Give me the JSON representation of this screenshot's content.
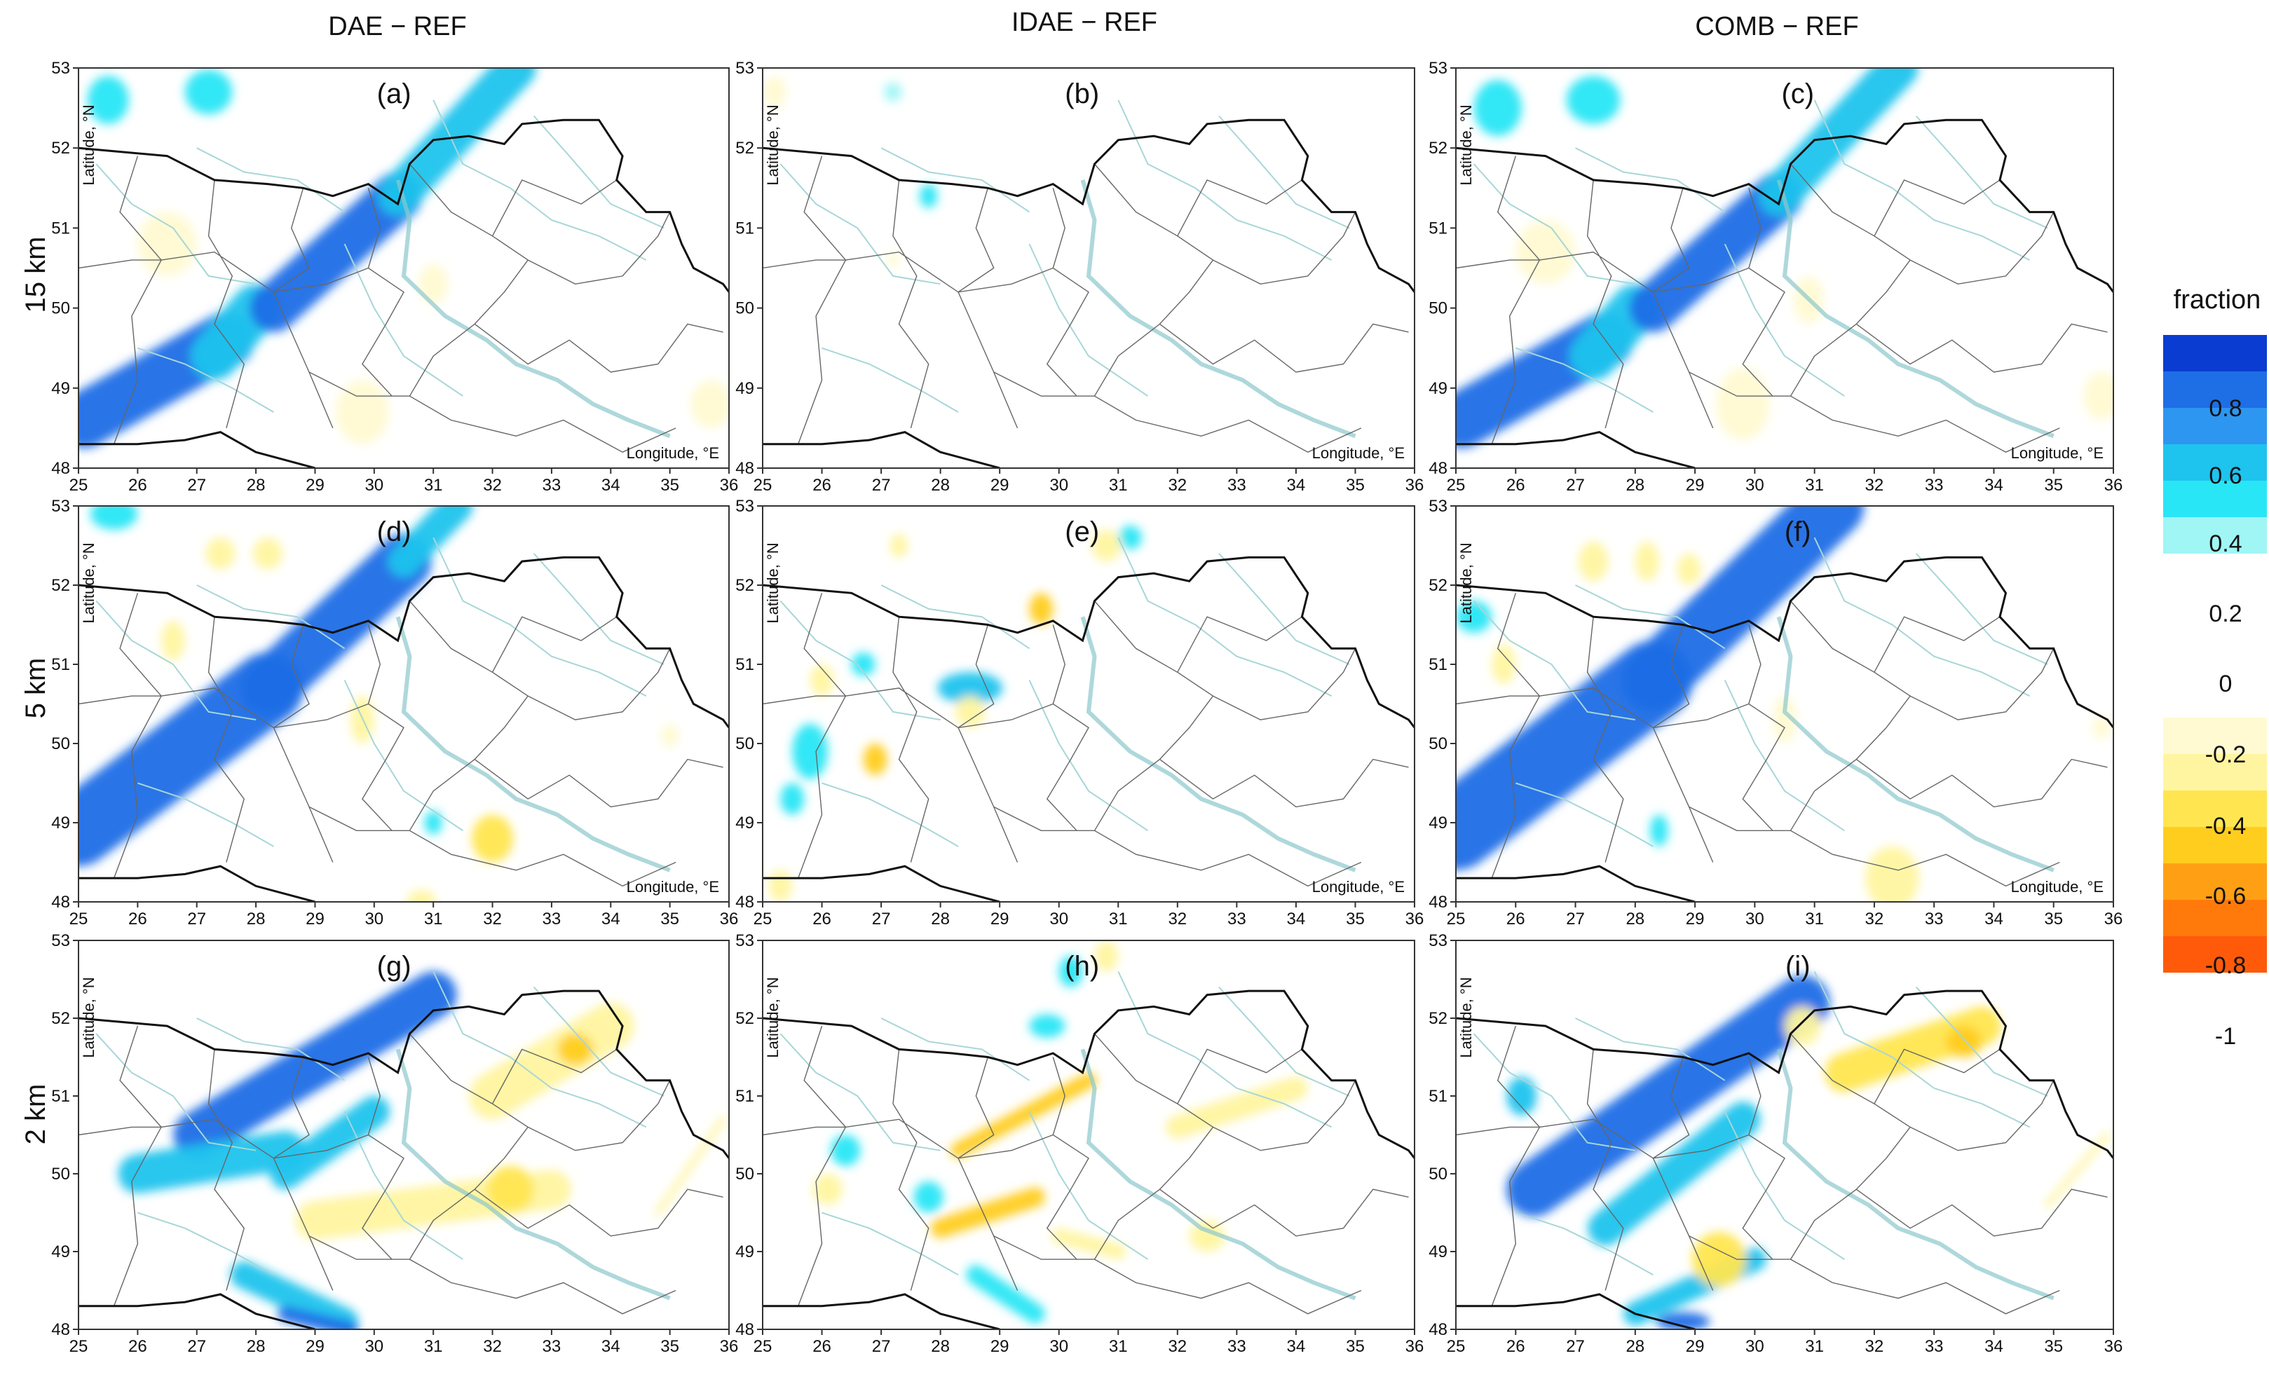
{
  "chart_data": {
    "type": "heatmap",
    "columns": [
      "DAE − REF",
      "IDAE − REF",
      "COMB − REF"
    ],
    "rows": [
      "15 km",
      "5 km",
      "2 km"
    ],
    "x": {
      "label": "Longitude, °E",
      "range": [
        25,
        36
      ],
      "ticks": [
        "25",
        "26",
        "27",
        "28",
        "29",
        "30",
        "31",
        "32",
        "33",
        "34",
        "35",
        "36"
      ]
    },
    "y": {
      "label": "Latitude, °N",
      "range": [
        48,
        53
      ],
      "ticks": [
        "48",
        "49",
        "50",
        "51",
        "52",
        "53"
      ]
    },
    "colorbar": {
      "title": "fraction",
      "range": [
        -1,
        1
      ],
      "labels": [
        "0.8",
        "0.6",
        "0.4",
        "0.2",
        "0",
        "-0.2",
        "-0.4",
        "-0.6",
        "-0.8",
        "-1"
      ],
      "colors_positive": [
        "#0a3cd2",
        "#1e6ee6",
        "#2d96f0",
        "#1ec3ee",
        "#28e6f5",
        "#a0f5f5"
      ],
      "colors_negative": [
        "#fffad2",
        "#fff5a0",
        "#ffe650",
        "#ffcd1e",
        "#ffa014",
        "#ff7a0a",
        "#ff5a0a"
      ]
    },
    "panels": [
      {
        "label": "(a)",
        "row": "15 km",
        "column": "DAE − REF",
        "x_label": "Longitude, °E",
        "y_label": "Latitude, °N",
        "features": [
          {
            "lon1": 25.1,
            "lat1": 48.6,
            "lon2": 27.5,
            "lat2": 49.6,
            "width": 0.7,
            "value": 0.9
          },
          {
            "lon1": 27.3,
            "lat1": 49.4,
            "lon2": 28.0,
            "lat2": 50.0,
            "width": 0.6,
            "value": 0.6
          },
          {
            "lon1": 28.3,
            "lat1": 50.0,
            "lon2": 30.4,
            "lat2": 51.4,
            "width": 0.6,
            "value": 0.9
          },
          {
            "lon1": 30.4,
            "lat1": 51.4,
            "lon2": 32.4,
            "lat2": 53.0,
            "width": 0.5,
            "value": 0.5
          },
          {
            "lon": 25.5,
            "lat": 52.6,
            "rx": 0.35,
            "ry": 0.3,
            "value": 0.4
          },
          {
            "lon": 27.2,
            "lat": 52.7,
            "rx": 0.4,
            "ry": 0.28,
            "value": 0.4
          },
          {
            "lon": 26.5,
            "lat": 50.8,
            "rx": 0.5,
            "ry": 0.4,
            "value": -0.15
          },
          {
            "lon": 29.8,
            "lat": 48.7,
            "rx": 0.45,
            "ry": 0.4,
            "value": -0.15
          },
          {
            "lon": 31.0,
            "lat": 50.3,
            "rx": 0.25,
            "ry": 0.25,
            "value": -0.1
          },
          {
            "lon": 35.7,
            "lat": 48.8,
            "rx": 0.35,
            "ry": 0.3,
            "value": -0.1
          }
        ]
      },
      {
        "label": "(b)",
        "row": "15 km",
        "column": "IDAE − REF",
        "x_label": "Longitude, °E",
        "y_label": "Latitude, °N",
        "features": [
          {
            "lon": 27.2,
            "lat": 52.7,
            "rx": 0.15,
            "ry": 0.12,
            "value": 0.2
          },
          {
            "lon": 27.8,
            "lat": 51.4,
            "rx": 0.15,
            "ry": 0.15,
            "value": 0.3
          },
          {
            "lon": 25.2,
            "lat": 52.7,
            "rx": 0.2,
            "ry": 0.2,
            "value": -0.1
          },
          {
            "lon": 27.2,
            "lat": 50.6,
            "rx": 0.1,
            "ry": 0.1,
            "value": -0.1
          }
        ]
      },
      {
        "label": "(c)",
        "row": "15 km",
        "column": "COMB − REF",
        "x_label": "Longitude, °E",
        "y_label": "Latitude, °N",
        "features": [
          {
            "lon1": 25.1,
            "lat1": 48.6,
            "lon2": 27.5,
            "lat2": 49.6,
            "width": 0.7,
            "value": 0.9
          },
          {
            "lon1": 27.3,
            "lat1": 49.4,
            "lon2": 28.0,
            "lat2": 50.0,
            "width": 0.6,
            "value": 0.6
          },
          {
            "lon1": 28.3,
            "lat1": 50.0,
            "lon2": 30.4,
            "lat2": 51.4,
            "width": 0.6,
            "value": 0.9
          },
          {
            "lon1": 30.4,
            "lat1": 51.4,
            "lon2": 32.4,
            "lat2": 53.0,
            "width": 0.5,
            "value": 0.5
          },
          {
            "lon": 25.7,
            "lat": 52.5,
            "rx": 0.4,
            "ry": 0.35,
            "value": 0.4
          },
          {
            "lon": 27.3,
            "lat": 52.6,
            "rx": 0.45,
            "ry": 0.3,
            "value": 0.4
          },
          {
            "lon": 26.5,
            "lat": 50.7,
            "rx": 0.5,
            "ry": 0.4,
            "value": -0.15
          },
          {
            "lon": 29.8,
            "lat": 48.8,
            "rx": 0.45,
            "ry": 0.45,
            "value": -0.15
          },
          {
            "lon": 30.9,
            "lat": 50.1,
            "rx": 0.25,
            "ry": 0.3,
            "value": -0.1
          },
          {
            "lon": 35.8,
            "lat": 48.9,
            "rx": 0.3,
            "ry": 0.3,
            "value": -0.1
          }
        ]
      },
      {
        "label": "(d)",
        "row": "5 km",
        "column": "DAE − REF",
        "x_label": "Longitude, °E",
        "y_label": "Latitude, °N",
        "features": [
          {
            "lon1": 25.0,
            "lat1": 48.9,
            "lon2": 28.2,
            "lat2": 50.7,
            "width": 0.9,
            "value": 0.9
          },
          {
            "lon1": 28.2,
            "lat1": 50.7,
            "lon2": 30.5,
            "lat2": 52.3,
            "width": 0.7,
            "value": 0.9
          },
          {
            "lon1": 30.5,
            "lat1": 52.3,
            "lon2": 31.4,
            "lat2": 53.0,
            "width": 0.4,
            "value": 0.5
          },
          {
            "lon": 25.6,
            "lat": 52.9,
            "rx": 0.4,
            "ry": 0.2,
            "value": 0.4
          },
          {
            "lon": 31.0,
            "lat": 49.0,
            "rx": 0.15,
            "ry": 0.15,
            "value": 0.3
          },
          {
            "lon": 32.0,
            "lat": 48.8,
            "rx": 0.35,
            "ry": 0.3,
            "value": -0.4
          },
          {
            "lon": 28.2,
            "lat": 52.4,
            "rx": 0.25,
            "ry": 0.2,
            "value": -0.3
          },
          {
            "lon": 29.8,
            "lat": 50.3,
            "rx": 0.2,
            "ry": 0.3,
            "value": -0.25
          },
          {
            "lon": 26.6,
            "lat": 51.3,
            "rx": 0.2,
            "ry": 0.25,
            "value": -0.2
          },
          {
            "lon": 27.4,
            "lat": 52.4,
            "rx": 0.25,
            "ry": 0.2,
            "value": -0.2
          },
          {
            "lon": 30.8,
            "lat": 48.0,
            "rx": 0.25,
            "ry": 0.15,
            "value": -0.2
          },
          {
            "lon": 35.0,
            "lat": 50.1,
            "rx": 0.15,
            "ry": 0.15,
            "value": -0.1
          }
        ]
      },
      {
        "label": "(e)",
        "row": "5 km",
        "column": "IDAE − REF",
        "x_label": "Longitude, °E",
        "y_label": "Latitude, °N",
        "features": [
          {
            "lon": 28.5,
            "lat": 50.7,
            "rx": 0.55,
            "ry": 0.2,
            "value": 0.45
          },
          {
            "lon": 25.8,
            "lat": 49.9,
            "rx": 0.3,
            "ry": 0.35,
            "value": 0.4
          },
          {
            "lon": 26.7,
            "lat": 51.0,
            "rx": 0.2,
            "ry": 0.15,
            "value": 0.3
          },
          {
            "lon": 31.2,
            "lat": 52.6,
            "rx": 0.2,
            "ry": 0.15,
            "value": 0.35
          },
          {
            "lon": 25.5,
            "lat": 49.3,
            "rx": 0.2,
            "ry": 0.2,
            "value": 0.3
          },
          {
            "lon": 26.9,
            "lat": 49.8,
            "rx": 0.2,
            "ry": 0.2,
            "value": -0.6
          },
          {
            "lon": 29.7,
            "lat": 51.7,
            "rx": 0.2,
            "ry": 0.2,
            "value": -0.5
          },
          {
            "lon": 28.5,
            "lat": 50.4,
            "rx": 0.25,
            "ry": 0.2,
            "value": -0.3
          },
          {
            "lon": 26.0,
            "lat": 50.8,
            "rx": 0.2,
            "ry": 0.2,
            "value": -0.3
          },
          {
            "lon": 30.8,
            "lat": 52.5,
            "rx": 0.25,
            "ry": 0.2,
            "value": -0.3
          },
          {
            "lon": 27.3,
            "lat": 52.5,
            "rx": 0.15,
            "ry": 0.15,
            "value": -0.2
          },
          {
            "lon": 25.3,
            "lat": 48.2,
            "rx": 0.2,
            "ry": 0.2,
            "value": -0.3
          }
        ]
      },
      {
        "label": "(f)",
        "row": "5 km",
        "column": "COMB − REF",
        "x_label": "Longitude, °E",
        "y_label": "Latitude, °N",
        "features": [
          {
            "lon1": 25.0,
            "lat1": 48.9,
            "lon2": 28.3,
            "lat2": 50.8,
            "width": 1.0,
            "value": 0.9
          },
          {
            "lon1": 28.3,
            "lat1": 50.8,
            "lon2": 31.3,
            "lat2": 53.0,
            "width": 0.8,
            "value": 0.9
          },
          {
            "lon": 25.3,
            "lat": 51.6,
            "rx": 0.3,
            "ry": 0.2,
            "value": 0.3
          },
          {
            "lon": 28.4,
            "lat": 48.9,
            "rx": 0.15,
            "ry": 0.2,
            "value": 0.35
          },
          {
            "lon": 32.3,
            "lat": 48.3,
            "rx": 0.45,
            "ry": 0.4,
            "value": -0.3
          },
          {
            "lon": 28.2,
            "lat": 52.3,
            "rx": 0.2,
            "ry": 0.25,
            "value": -0.3
          },
          {
            "lon": 27.3,
            "lat": 52.3,
            "rx": 0.25,
            "ry": 0.25,
            "value": -0.25
          },
          {
            "lon": 25.8,
            "lat": 51.0,
            "rx": 0.2,
            "ry": 0.25,
            "value": -0.2
          },
          {
            "lon": 28.9,
            "lat": 52.2,
            "rx": 0.2,
            "ry": 0.2,
            "value": -0.2
          },
          {
            "lon": 30.5,
            "lat": 50.3,
            "rx": 0.2,
            "ry": 0.3,
            "value": -0.15
          },
          {
            "lon": 35.8,
            "lat": 50.2,
            "rx": 0.15,
            "ry": 0.15,
            "value": -0.1
          }
        ]
      },
      {
        "label": "(g)",
        "row": "2 km",
        "column": "DAE − REF",
        "x_label": "",
        "y_label": "Latitude, °N",
        "features": [
          {
            "lon1": 27.0,
            "lat1": 50.5,
            "lon2": 31.0,
            "lat2": 52.3,
            "width": 0.6,
            "value": 0.85
          },
          {
            "lon1": 26.0,
            "lat1": 50.0,
            "lon2": 28.5,
            "lat2": 50.3,
            "width": 0.5,
            "value": 0.5
          },
          {
            "lon1": 28.5,
            "lat1": 50.0,
            "lon2": 30.0,
            "lat2": 50.8,
            "width": 0.4,
            "value": 0.6
          },
          {
            "lon1": 27.8,
            "lat1": 48.7,
            "lon2": 29.5,
            "lat2": 48.1,
            "width": 0.35,
            "value": 0.5
          },
          {
            "lon1": 28.5,
            "lat1": 48.2,
            "lon2": 29.6,
            "lat2": 48.0,
            "width": 0.2,
            "value": 0.85
          },
          {
            "lon1": 32.0,
            "lat1": 51.0,
            "lon2": 34.0,
            "lat2": 51.9,
            "width": 0.6,
            "value": -0.3
          },
          {
            "lon1": 29.0,
            "lat1": 49.4,
            "lon2": 33.0,
            "lat2": 49.8,
            "width": 0.5,
            "value": -0.3
          },
          {
            "lon": 33.4,
            "lat": 51.6,
            "rx": 0.3,
            "ry": 0.2,
            "value": -0.5
          },
          {
            "lon": 32.3,
            "lat": 49.8,
            "rx": 0.4,
            "ry": 0.3,
            "value": -0.4
          },
          {
            "lon1": 34.8,
            "lat1": 49.5,
            "lon2": 35.9,
            "lat2": 50.7,
            "width": 0.08,
            "value": -0.3
          }
        ]
      },
      {
        "label": "(h)",
        "row": "2 km",
        "column": "IDAE − REF",
        "x_label": "",
        "y_label": "Latitude, °N",
        "features": [
          {
            "lon1": 28.3,
            "lat1": 50.3,
            "lon2": 30.5,
            "lat2": 51.2,
            "width": 0.2,
            "value": -0.5
          },
          {
            "lon1": 28.0,
            "lat1": 49.3,
            "lon2": 29.6,
            "lat2": 49.7,
            "width": 0.25,
            "value": -0.5
          },
          {
            "lon1": 30.0,
            "lat1": 49.2,
            "lon2": 31.0,
            "lat2": 49.0,
            "width": 0.2,
            "value": -0.3
          },
          {
            "lon1": 32.0,
            "lat1": 50.6,
            "lon2": 34.0,
            "lat2": 51.1,
            "width": 0.3,
            "value": -0.2
          },
          {
            "lon1": 28.6,
            "lat1": 48.7,
            "lon2": 29.6,
            "lat2": 48.2,
            "width": 0.25,
            "value": 0.4
          },
          {
            "lon": 29.8,
            "lat": 51.9,
            "rx": 0.3,
            "ry": 0.15,
            "value": 0.4
          },
          {
            "lon": 27.8,
            "lat": 49.7,
            "rx": 0.25,
            "ry": 0.2,
            "value": 0.35
          },
          {
            "lon": 26.4,
            "lat": 50.3,
            "rx": 0.25,
            "ry": 0.2,
            "value": 0.35
          },
          {
            "lon": 30.2,
            "lat": 52.6,
            "rx": 0.2,
            "ry": 0.2,
            "value": 0.3
          },
          {
            "lon": 26.1,
            "lat": 49.8,
            "rx": 0.25,
            "ry": 0.2,
            "value": -0.3
          },
          {
            "lon": 30.8,
            "lat": 52.8,
            "rx": 0.2,
            "ry": 0.2,
            "value": -0.3
          },
          {
            "lon": 32.5,
            "lat": 49.2,
            "rx": 0.3,
            "ry": 0.2,
            "value": -0.25
          }
        ]
      },
      {
        "label": "(i)",
        "row": "2 km",
        "column": "COMB − REF",
        "x_label": "",
        "y_label": "Latitude, °N",
        "features": [
          {
            "lon1": 26.3,
            "lat1": 49.8,
            "lon2": 30.8,
            "lat2": 52.2,
            "width": 0.7,
            "value": 0.85
          },
          {
            "lon1": 27.5,
            "lat1": 49.3,
            "lon2": 29.8,
            "lat2": 50.7,
            "width": 0.45,
            "value": 0.6
          },
          {
            "lon1": 28.0,
            "lat1": 48.2,
            "lon2": 30.0,
            "lat2": 48.9,
            "width": 0.3,
            "value": 0.5
          },
          {
            "lon": 28.8,
            "lat": 48.1,
            "rx": 0.45,
            "ry": 0.12,
            "value": 0.85
          },
          {
            "lon": 26.1,
            "lat": 51.0,
            "rx": 0.25,
            "ry": 0.25,
            "value": 0.5
          },
          {
            "lon1": 31.5,
            "lat1": 51.3,
            "lon2": 33.8,
            "lat2": 51.9,
            "width": 0.5,
            "value": -0.4
          },
          {
            "lon": 33.5,
            "lat": 51.7,
            "rx": 0.3,
            "ry": 0.2,
            "value": -0.55
          },
          {
            "lon": 29.4,
            "lat": 48.9,
            "rx": 0.45,
            "ry": 0.35,
            "value": -0.45
          },
          {
            "lon": 30.8,
            "lat": 51.9,
            "rx": 0.3,
            "ry": 0.25,
            "value": -0.3
          },
          {
            "lon1": 34.9,
            "lat1": 49.6,
            "lon2": 35.9,
            "lat2": 50.5,
            "width": 0.08,
            "value": -0.3
          }
        ]
      }
    ]
  }
}
